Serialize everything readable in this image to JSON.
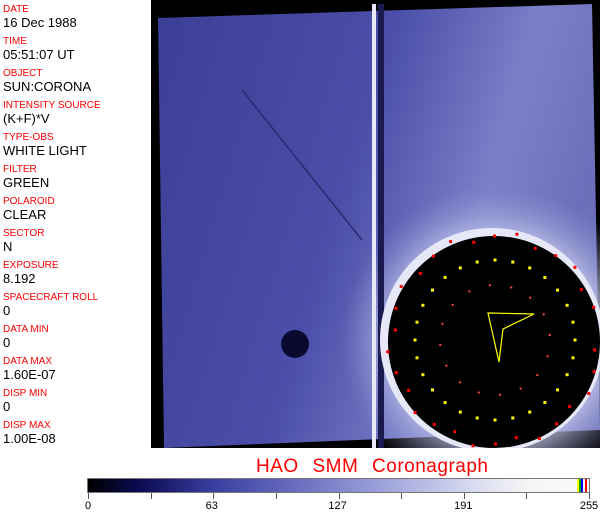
{
  "header_fields": [
    {
      "label": "DATE",
      "value": "16 Dec 1988"
    },
    {
      "label": "TIME",
      "value": "05:51:07 UT"
    },
    {
      "label": "OBJECT",
      "value": "SUN:CORONA"
    },
    {
      "label": "INTENSITY SOURCE",
      "value": "(K+F)*V"
    },
    {
      "label": "TYPE-OBS",
      "value": "WHITE LIGHT"
    },
    {
      "label": "FILTER",
      "value": "GREEN"
    },
    {
      "label": "POLAROID",
      "value": "CLEAR"
    },
    {
      "label": "SECTOR",
      "value": "N"
    },
    {
      "label": "EXPOSURE",
      "value": "8.192"
    },
    {
      "label": "SPACECRAFT ROLL",
      "value": "0"
    },
    {
      "label": "DATA MIN",
      "value": "0"
    },
    {
      "label": "DATA MAX",
      "value": "1.60E-07"
    },
    {
      "label": "DISP MIN",
      "value": "0"
    },
    {
      "label": "DISP MAX",
      "value": "1.00E-08"
    }
  ],
  "title": "HAO  SMM Coronagraph",
  "colorbar": {
    "min": 0,
    "max": 255,
    "ticks": [
      "0",
      "63",
      "127",
      "191",
      "255"
    ],
    "colors": [
      "#000000",
      "#0a0a50",
      "#6a6fc0",
      "#f8f8f8",
      "#ffff00",
      "#00c000",
      "#0000ff",
      "#ff0000"
    ]
  }
}
